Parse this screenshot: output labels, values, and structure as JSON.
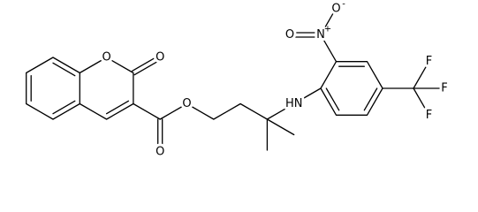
{
  "atoms": [
    {
      "label": "O"
    },
    {
      "label": "O"
    },
    {
      "label": "O"
    },
    {
      "label": "O"
    },
    {
      "label": "HN"
    },
    {
      "label": "N",
      "charge": "+"
    },
    {
      "label": "O"
    },
    {
      "label": "O",
      "charge": "-"
    },
    {
      "label": "F"
    },
    {
      "label": "F"
    },
    {
      "label": "F"
    }
  ]
}
